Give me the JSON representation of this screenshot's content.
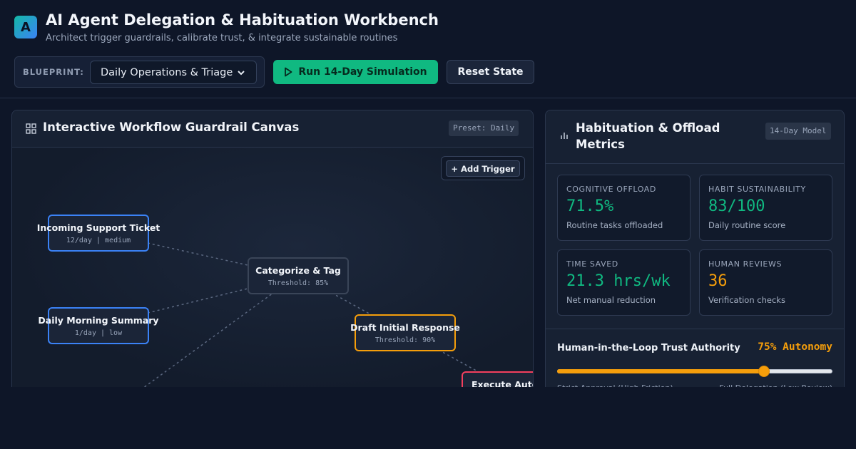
{
  "app": {
    "logo_letter": "A",
    "title": "AI Agent Delegation & Habituation Workbench",
    "subtitle": "Architect trigger guardrails, calibrate trust, & integrate sustainable routines"
  },
  "toolbar": {
    "blueprint_label": "BLUEPRINT:",
    "blueprint_value": "Daily Operations & Triage",
    "run_label": "Run 14-Day Simulation",
    "reset_label": "Reset State"
  },
  "canvas": {
    "title": "Interactive Workflow Guardrail Canvas",
    "badge": "Preset: Daily",
    "add_trigger": "+ Add Trigger",
    "nodes": [
      {
        "title": "Incoming Support Ticket",
        "sub": "12/day | medium",
        "kind": "trigger"
      },
      {
        "title": "Daily Morning Summary",
        "sub": "1/day | low",
        "kind": "trigger"
      },
      {
        "title": "Categorize & Tag",
        "sub": "Threshold: 85%",
        "kind": "step"
      },
      {
        "title": "Draft Initial Response",
        "sub": "Threshold: 90%",
        "kind": "review"
      },
      {
        "title": "Execute Auto",
        "sub": "",
        "kind": "action"
      }
    ]
  },
  "metrics": {
    "title": "Habituation & Offload Metrics",
    "badge": "14-Day Model",
    "cards": [
      {
        "label": "COGNITIVE OFFLOAD",
        "value": "71.5%",
        "note": "Routine tasks offloaded",
        "tone": "green"
      },
      {
        "label": "HABIT SUSTAINABILITY",
        "value": "83/100",
        "note": "Daily routine score",
        "tone": "green"
      },
      {
        "label": "TIME SAVED",
        "value": "21.3 hrs/wk",
        "note": "Net manual reduction",
        "tone": "green"
      },
      {
        "label": "HUMAN REVIEWS",
        "value": "36",
        "note": "Verification checks",
        "tone": "amber"
      }
    ],
    "trust": {
      "title": "Human-in-the-Loop Trust Authority",
      "value_text": "75% Autonomy",
      "autonomy": 0.75,
      "range_left": "Strict Approval (High Friction)",
      "range_right": "Full Delegation (Low Review)"
    }
  },
  "colors": {
    "accent_green": "#10b981",
    "accent_amber": "#f59e0b",
    "node_blue": "#3b82f6",
    "node_red": "#f43f5e"
  },
  "icons": {
    "grid": "grid-icon",
    "chart": "bar-chart-icon",
    "play": "play-icon",
    "select": "chevron-down-icon"
  }
}
